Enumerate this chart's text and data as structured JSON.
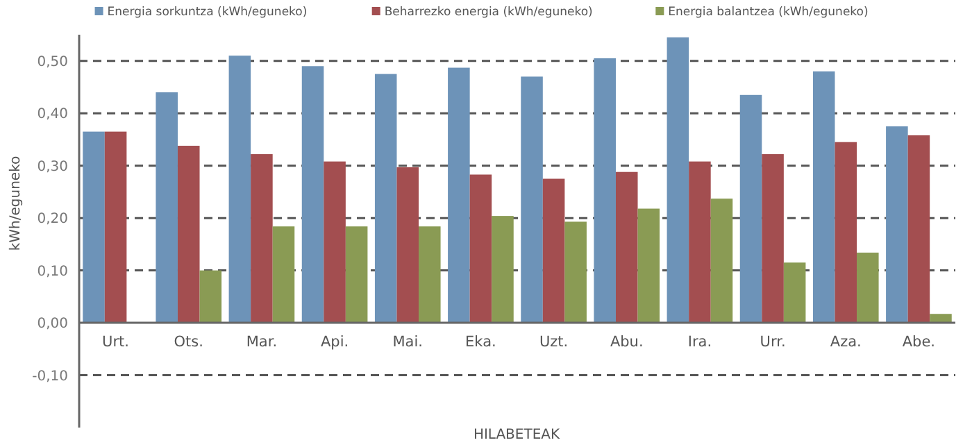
{
  "chart_data": {
    "type": "bar",
    "xlabel": "HILABETEAK",
    "ylabel": "kWh/eguneko",
    "categories": [
      "Urt.",
      "Ots.",
      "Mar.",
      "Api.",
      "Mai.",
      "Eka.",
      "Uzt.",
      "Abu.",
      "Ira.",
      "Urr.",
      "Aza.",
      "Abe."
    ],
    "series": [
      {
        "name": "Energia sorkuntza (kWh/eguneko)",
        "color": "#6d93b8",
        "values": [
          0.365,
          0.44,
          0.51,
          0.49,
          0.475,
          0.487,
          0.47,
          0.505,
          0.545,
          0.435,
          0.48,
          0.375
        ]
      },
      {
        "name": "Beharrezko energia (kWh/eguneko)",
        "color": "#a34e50",
        "values": [
          0.365,
          0.338,
          0.322,
          0.308,
          0.297,
          0.283,
          0.275,
          0.288,
          0.308,
          0.322,
          0.345,
          0.358
        ]
      },
      {
        "name": "Energia balantzea (kWh/eguneko)",
        "color": "#8a9b54",
        "values": [
          0,
          0.1,
          0.184,
          0.184,
          0.184,
          0.204,
          0.193,
          0.218,
          0.237,
          0.115,
          0.134,
          0.017
        ]
      }
    ],
    "ylim": [
      -0.2,
      0.55
    ],
    "yticks": [
      {
        "value": -0.1,
        "label": "-0,10"
      },
      {
        "value": 0,
        "label": "0,00"
      },
      {
        "value": 0.1,
        "label": "0,10"
      },
      {
        "value": 0.2,
        "label": "0,20"
      },
      {
        "value": 0.3,
        "label": "0,30"
      },
      {
        "value": 0.4,
        "label": "0,40"
      },
      {
        "value": 0.5,
        "label": "0,50"
      }
    ],
    "grid": "y",
    "legend": "top"
  }
}
